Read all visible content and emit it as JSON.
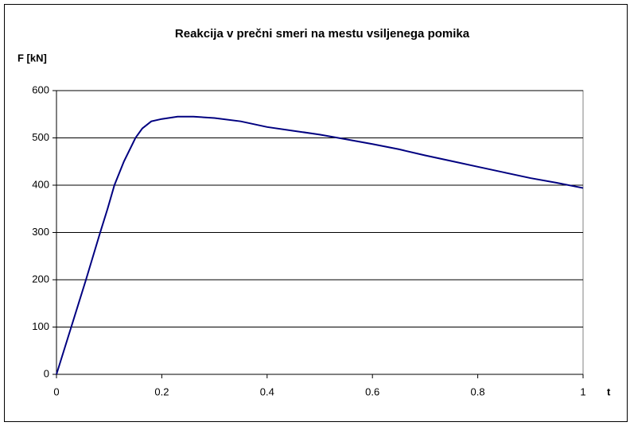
{
  "chart_data": {
    "type": "line",
    "title": "Reakcija v prečni smeri na mestu vsiljenega pomika",
    "ylabel": "F [kN]",
    "xlabel": "t",
    "x": [
      0,
      0.028,
      0.056,
      0.083,
      0.097,
      0.11,
      0.128,
      0.15,
      0.163,
      0.18,
      0.2,
      0.23,
      0.26,
      0.3,
      0.35,
      0.4,
      0.45,
      0.5,
      0.55,
      0.6,
      0.65,
      0.7,
      0.75,
      0.8,
      0.85,
      0.9,
      0.95,
      1.0
    ],
    "series": [
      {
        "name": "F",
        "color": "#000080",
        "values": [
          0,
          100,
          200,
          300,
          350,
          400,
          450,
          500,
          520,
          535,
          540,
          545,
          545,
          542,
          535,
          523,
          515,
          507,
          497,
          487,
          476,
          463,
          451,
          439,
          427,
          415,
          405,
          394
        ]
      }
    ],
    "xlim": [
      0,
      1
    ],
    "xticks": [
      0,
      0.2,
      0.4,
      0.6,
      0.8,
      1
    ],
    "ylim": [
      0,
      600
    ],
    "yticks": [
      0,
      100,
      200,
      300,
      400,
      500,
      600
    ],
    "grid": true
  }
}
